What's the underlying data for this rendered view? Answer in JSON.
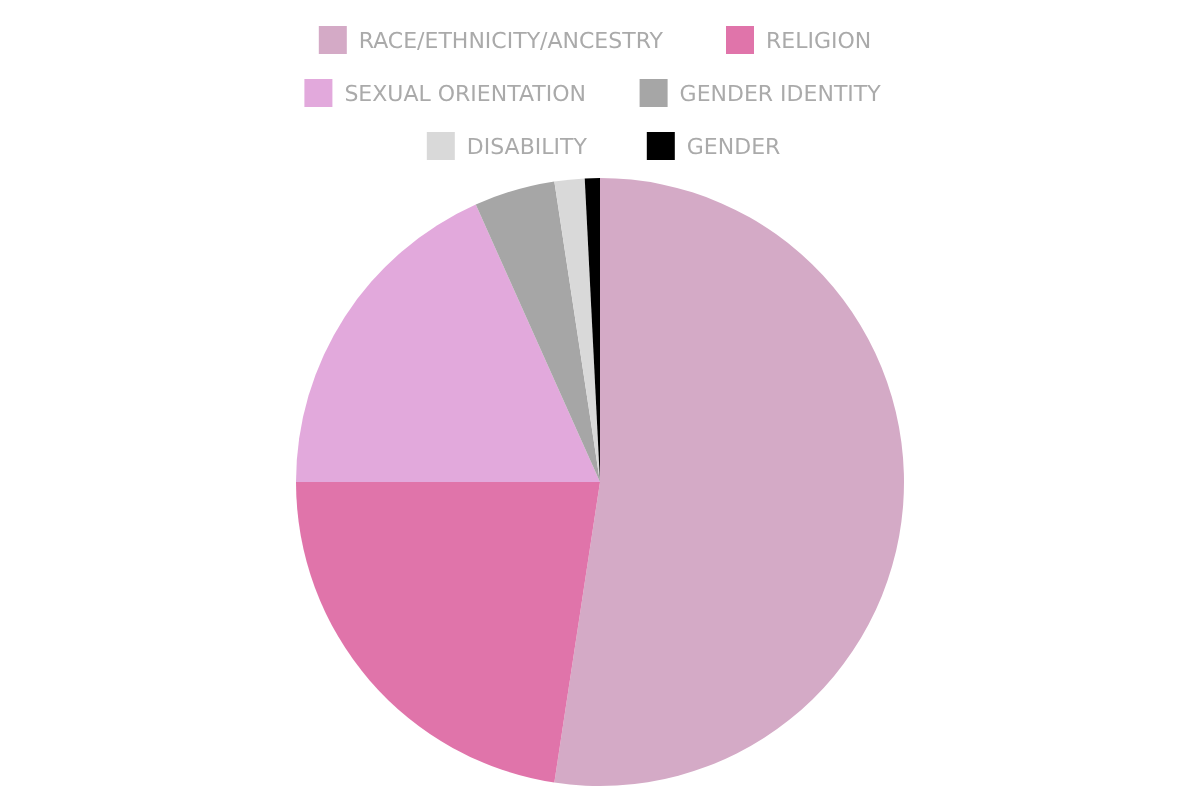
{
  "chart_data": {
    "type": "pie",
    "categories": [
      "RACE/ETHNICITY/ANCESTRY",
      "RELIGION",
      "SEXUAL ORIENTATION",
      "GENDER IDENTITY",
      "DISABILITY",
      "GENDER"
    ],
    "values": [
      52.4,
      22.6,
      18.3,
      4.3,
      1.6,
      0.8
    ],
    "colors": [
      "#d4aac6",
      "#e074aa",
      "#e2a9dc",
      "#a6a6a6",
      "#d9d9d9",
      "#000000"
    ],
    "legend": "top"
  }
}
